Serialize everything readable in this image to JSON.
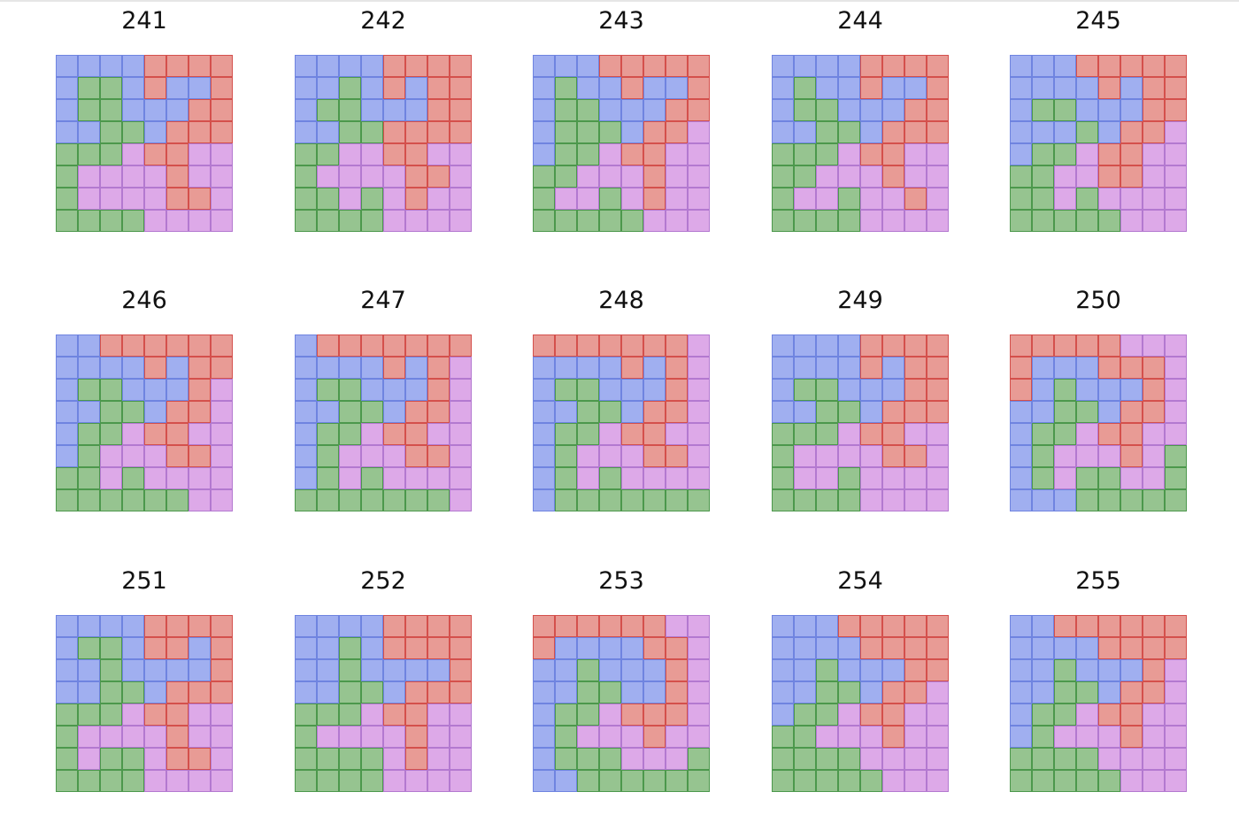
{
  "colors": {
    "B": "#a0aff0",
    "R": "#e89b95",
    "G": "#96c490",
    "P": "#dda9e8"
  },
  "panels": [
    {
      "label": "241",
      "grid": [
        "BBBBRRRR",
        "BGGBRBBR",
        "BGGBBBRR",
        "BBGGBRRR",
        "GGGPRRPP",
        "GPPPPRPP",
        "GPPPPRRP",
        "GGGGPPPP"
      ]
    },
    {
      "label": "242",
      "grid": [
        "BBBBRRRR",
        "BBGBRBRR",
        "BGGBBBRR",
        "BBGGRRRR",
        "GGPPRRPP",
        "GPPPPRRP",
        "GGPGPRPP",
        "GGGGPPPP"
      ]
    },
    {
      "label": "243",
      "grid": [
        "BBBRRRRR",
        "BGBBRBBR",
        "BGGBBBRR",
        "BGGGBRRP",
        "BGGPRRPP",
        "GGPPPRPP",
        "GPPGPRPP",
        "GGGGGPPP"
      ]
    },
    {
      "label": "244",
      "grid": [
        "BBBBRRRR",
        "BGBBRBBR",
        "BGGBBBRR",
        "BBGGBRRR",
        "GGGPRRPP",
        "GGPPPRPP",
        "GPPGPPRP",
        "GGGGPPPP"
      ]
    },
    {
      "label": "245",
      "grid": [
        "BBBRRRRR",
        "BBBBRBRR",
        "BGGBBBRR",
        "BBBGBRRP",
        "BGGPRRPP",
        "GGPPRRPP",
        "GGPGPPPP",
        "GGGGGPPP"
      ]
    },
    {
      "label": "246",
      "grid": [
        "BBRRRRRR",
        "BBBBRBRR",
        "BGGBBBRP",
        "BBGGBRRP",
        "BGGPRRPP",
        "BGPPPRRP",
        "GGPGPPPP",
        "GGGGGGPP"
      ]
    },
    {
      "label": "247",
      "grid": [
        "BRRRRRRR",
        "BBBBRBRP",
        "BGGBBBRP",
        "BBGGBRRP",
        "BGGPRRPP",
        "BGPPPRRP",
        "BGPGPPPP",
        "GGGGGGGP"
      ]
    },
    {
      "label": "248",
      "grid": [
        "RRRRRRRP",
        "BBBBRBRP",
        "BGGBBBRP",
        "BBGGBRRP",
        "BGGPRRPP",
        "BGPPPRRP",
        "BGPGPPPP",
        "BGGGGGGG"
      ]
    },
    {
      "label": "249",
      "grid": [
        "BBBBRRRR",
        "BBBBRBRR",
        "BGGBBBRR",
        "BBGGBRRR",
        "GGGPRRPP",
        "GPPPPRRP",
        "GPPGPPPP",
        "GGGGPPPP"
      ]
    },
    {
      "label": "250",
      "grid": [
        "RRRRRPPP",
        "RBBBRRRP",
        "RBGBBBRP",
        "BBGGBRRP",
        "BGGPRRPP",
        "BGPPPRPG",
        "BGPGGPPG",
        "BBBGGGGG"
      ]
    },
    {
      "label": "251",
      "grid": [
        "BBBBRRRR",
        "BGGBRRBR",
        "BBGBBBBR",
        "BBGGBRRR",
        "GGGPRRPP",
        "GPPPPRPP",
        "GPGGPRRP",
        "GGGGPPPP"
      ]
    },
    {
      "label": "252",
      "grid": [
        "BBBBRRRR",
        "BBGBRRRR",
        "BBGBBBBR",
        "BBGGBRRR",
        "GGGPRRPP",
        "GPPPPRPP",
        "GGGGPRPP",
        "GGGGPPPP"
      ]
    },
    {
      "label": "253",
      "grid": [
        "RRRRRRPP",
        "RBBBBRRP",
        "BBGBBBRP",
        "BBGGBBRP",
        "BGGPRRRP",
        "BGPPPRPP",
        "BGGGPPPG",
        "BBGGGGGG"
      ]
    },
    {
      "label": "254",
      "grid": [
        "BBBRRRRR",
        "BBBBRRRR",
        "BBGBBBRR",
        "BBGGBRRP",
        "BGGPRRPP",
        "GGPPPRPP",
        "GGGGPPPP",
        "GGGGGPPP"
      ]
    },
    {
      "label": "255",
      "grid": [
        "BBRRRRRR",
        "BBBBRRRR",
        "BBGBBBRP",
        "BBGGBRRP",
        "BGGPRRPP",
        "BGPPPRPP",
        "GGGGPPPP",
        "GGGGGPPP"
      ]
    }
  ]
}
